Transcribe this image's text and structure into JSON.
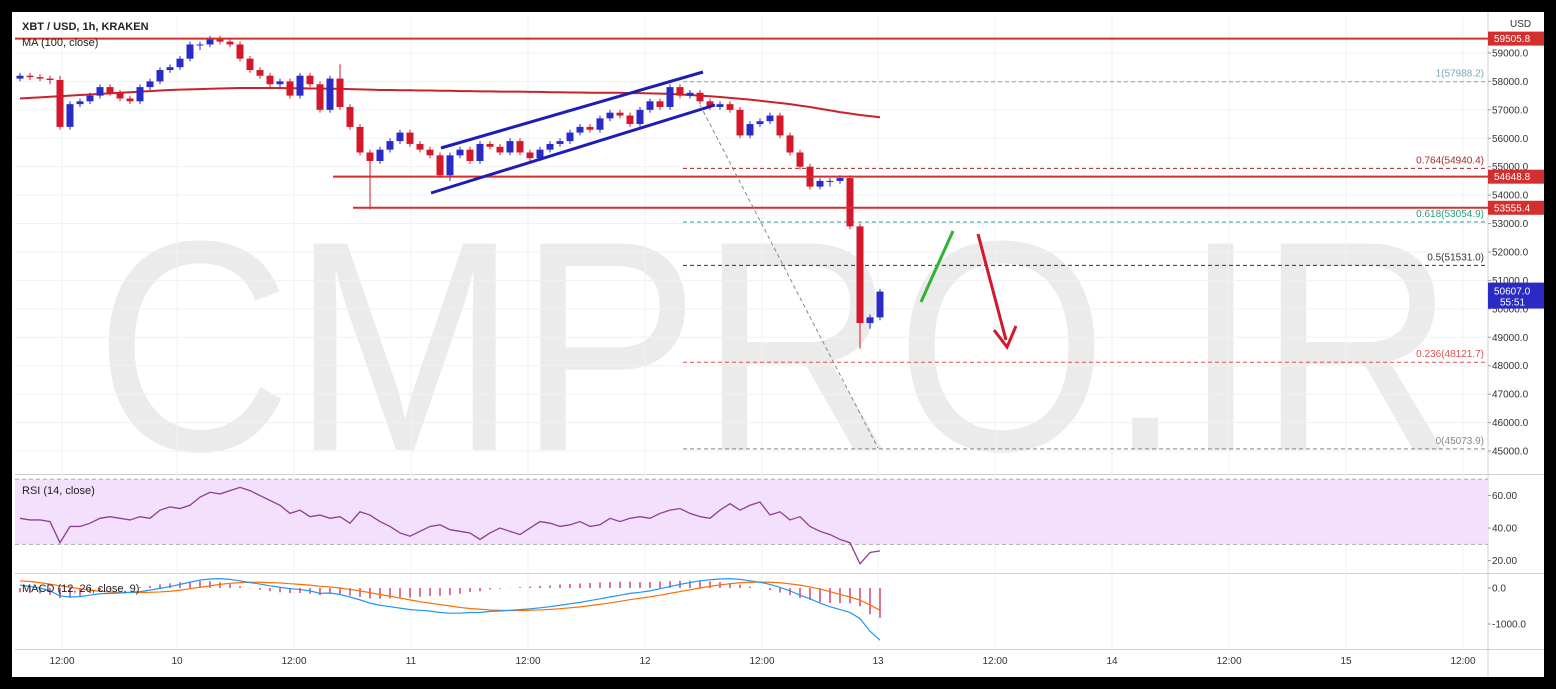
{
  "watermark": "CMPRO.IR",
  "chart_data": [
    {
      "type": "candlestick",
      "title": "XBT / USD, 1h, KRAKEN",
      "currency": "USD",
      "xlim": [
        -0.5,
        146.8
      ],
      "xticks": [
        {
          "value": 4.2,
          "label": "12:00"
        },
        {
          "value": 15.7,
          "label": "10"
        },
        {
          "value": 27.4,
          "label": "12:00"
        },
        {
          "value": 39.1,
          "label": "11"
        },
        {
          "value": 50.8,
          "label": "12:00"
        },
        {
          "value": 62.5,
          "label": "12"
        },
        {
          "value": 74.2,
          "label": "12:00"
        },
        {
          "value": 85.8,
          "label": "13"
        },
        {
          "value": 97.5,
          "label": "12:00"
        },
        {
          "value": 109.2,
          "label": "14"
        },
        {
          "value": 120.9,
          "label": "12:00"
        },
        {
          "value": 132.6,
          "label": "15"
        },
        {
          "value": 144.3,
          "label": "12:00"
        }
      ],
      "ylim": [
        44226,
        60336
      ],
      "yticks": [
        {
          "value": 45000,
          "label": "45000.0"
        },
        {
          "value": 46000,
          "label": "46000.0"
        },
        {
          "value": 47000,
          "label": "47000.0"
        },
        {
          "value": 48000,
          "label": "48000.0"
        },
        {
          "value": 49000,
          "label": "49000.0"
        },
        {
          "value": 50000,
          "label": "50000.0"
        },
        {
          "value": 51000,
          "label": "51000.0"
        },
        {
          "value": 52000,
          "label": "52000.0"
        },
        {
          "value": 53000,
          "label": "53000.0"
        },
        {
          "value": 54000,
          "label": "54000.0"
        },
        {
          "value": 55000,
          "label": "55000.0"
        },
        {
          "value": 56000,
          "label": "56000.0"
        },
        {
          "value": 57000,
          "label": "57000.0"
        },
        {
          "value": 58000,
          "label": "58000.0"
        },
        {
          "value": 59000,
          "label": "59000.0"
        }
      ],
      "grid": true,
      "ohlc": {
        "up_color": "#2a2ac4",
        "down_color": "#d3182b",
        "open": [
          58100,
          58200,
          58150,
          58100,
          58050,
          56400,
          57200,
          57300,
          57500,
          57800,
          57600,
          57400,
          57300,
          57800,
          58000,
          58400,
          58500,
          58800,
          59300,
          59300,
          59500,
          59400,
          59300,
          58800,
          58400,
          58200,
          57900,
          58000,
          57500,
          58200,
          57900,
          57000,
          58100,
          57100,
          56400,
          55500,
          55200,
          55600,
          55900,
          56200,
          55800,
          55600,
          55400,
          54700,
          55400,
          55600,
          55200,
          55800,
          55700,
          55500,
          55900,
          55500,
          55300,
          55600,
          55800,
          55900,
          56200,
          56400,
          56300,
          56700,
          56900,
          56800,
          56500,
          57000,
          57300,
          57100,
          57800,
          57500,
          57600,
          57300,
          57100,
          57200,
          57000,
          56100,
          56500,
          56600,
          56800,
          56100,
          55500,
          55000,
          54300,
          54500,
          54500,
          54600,
          52900,
          49500,
          49700
        ],
        "high": [
          58300,
          58300,
          58250,
          58200,
          58200,
          57300,
          57400,
          57600,
          57900,
          57900,
          57700,
          57500,
          57900,
          58100,
          58500,
          58600,
          58900,
          59400,
          59400,
          59600,
          59600,
          59500,
          59400,
          58900,
          58500,
          58300,
          58100,
          58100,
          58300,
          58300,
          58000,
          58200,
          58600,
          57200,
          56500,
          55600,
          55700,
          56000,
          56300,
          56300,
          55900,
          55700,
          55500,
          55500,
          55700,
          55700,
          55900,
          55900,
          55800,
          56000,
          56000,
          55600,
          55700,
          55900,
          56000,
          56300,
          56500,
          56500,
          56800,
          57000,
          57000,
          56900,
          57100,
          57400,
          57400,
          57900,
          57900,
          57700,
          57700,
          57400,
          57300,
          57300,
          57100,
          56600,
          56700,
          56900,
          56900,
          56200,
          55600,
          55100,
          54600,
          54600,
          54700,
          54700,
          53000,
          49800,
          50700
        ],
        "low": [
          58000,
          58050,
          58000,
          57900,
          56300,
          56300,
          57100,
          57200,
          57400,
          57500,
          57300,
          57200,
          57200,
          57700,
          57900,
          58300,
          58400,
          58700,
          59100,
          59200,
          59300,
          59200,
          58700,
          58300,
          58100,
          57800,
          57800,
          57400,
          57400,
          57800,
          56900,
          56900,
          57000,
          56300,
          55400,
          53500,
          55100,
          55500,
          55800,
          55700,
          55500,
          55300,
          54600,
          54500,
          55300,
          55100,
          55100,
          55600,
          55400,
          55400,
          55400,
          55200,
          55200,
          55500,
          55700,
          55800,
          56100,
          56200,
          56200,
          56600,
          56700,
          56400,
          56400,
          56900,
          57000,
          57000,
          57400,
          57400,
          57200,
          57000,
          57000,
          56900,
          56000,
          56000,
          56400,
          56500,
          56000,
          55400,
          54900,
          54200,
          54200,
          54300,
          54400,
          52800,
          48600,
          49300,
          49600
        ],
        "close": [
          58200,
          58150,
          58100,
          58050,
          56400,
          57200,
          57300,
          57500,
          57800,
          57600,
          57400,
          57300,
          57800,
          58000,
          58400,
          58500,
          58800,
          59300,
          59300,
          59500,
          59400,
          59300,
          58800,
          58400,
          58200,
          57900,
          58000,
          57500,
          58200,
          57900,
          57000,
          58100,
          57100,
          56400,
          55500,
          55200,
          55600,
          55900,
          56200,
          55800,
          55600,
          55400,
          54700,
          55400,
          55600,
          55200,
          55800,
          55700,
          55500,
          55900,
          55500,
          55300,
          55600,
          55800,
          55900,
          56200,
          56400,
          56300,
          56700,
          56900,
          56800,
          56500,
          57000,
          57300,
          57100,
          57800,
          57500,
          57600,
          57300,
          57100,
          57200,
          57000,
          56100,
          56500,
          56600,
          56800,
          56100,
          55500,
          55000,
          54300,
          54500,
          54500,
          54600,
          52900,
          49500,
          49700,
          50607
        ]
      },
      "series": [
        {
          "name": "MA (100, close)",
          "color": "#c8232c",
          "values": [
            57400,
            57420,
            57440,
            57460,
            57480,
            57500,
            57520,
            57540,
            57560,
            57580,
            57600,
            57620,
            57640,
            57660,
            57680,
            57700,
            57710,
            57720,
            57730,
            57740,
            57750,
            57760,
            57770,
            57770,
            57770,
            57770,
            57770,
            57760,
            57760,
            57750,
            57750,
            57740,
            57740,
            57730,
            57720,
            57710,
            57700,
            57700,
            57690,
            57690,
            57680,
            57680,
            57670,
            57670,
            57660,
            57660,
            57650,
            57650,
            57640,
            57640,
            57640,
            57630,
            57630,
            57620,
            57620,
            57610,
            57610,
            57600,
            57600,
            57600,
            57600,
            57590,
            57590,
            57580,
            57570,
            57560,
            57540,
            57520,
            57500,
            57480,
            57450,
            57420,
            57390,
            57360,
            57320,
            57280,
            57240,
            57200,
            57150,
            57100,
            57040,
            56980,
            56920,
            56870,
            56820,
            56780,
            56740
          ]
        }
      ],
      "levels": [
        {
          "value": 59505.8,
          "label": "59505.8",
          "color": "#d32f2f"
        },
        {
          "value": 54648.8,
          "label": "54648.8",
          "color": "#d32f2f",
          "from": 31.3
        },
        {
          "value": 53555.4,
          "label": "53555.4",
          "color": "#d32f2f",
          "from": 33.3
        }
      ],
      "fib_levels": [
        {
          "value": 57988.2,
          "label": "1(57988.2)",
          "color": "#7fa7b8"
        },
        {
          "value": 54940.4,
          "label": "0.764(54940.4)",
          "color": "#a52a2a"
        },
        {
          "value": 53054.9,
          "label": "0.618(53054.9)",
          "color": "#26a07a"
        },
        {
          "value": 51531.0,
          "label": "0.5(51531.0)",
          "color": "#333333"
        },
        {
          "value": 48121.7,
          "label": "0.236(48121.7)",
          "color": "#d9534f"
        },
        {
          "value": 45073.9,
          "label": "0(45073.9)",
          "color": "#888888"
        }
      ],
      "fib_from": 66.3,
      "last_price": {
        "value": 50607,
        "label": "50607.0",
        "countdown": "55:51",
        "color": "#2a2ac4"
      }
    },
    {
      "type": "line",
      "title": "RSI (14, close)",
      "color": "#8e3e8e",
      "ylim": [
        13,
        72
      ],
      "yticks": [
        {
          "value": 20,
          "label": "20.00"
        },
        {
          "value": 40,
          "label": "40.00"
        },
        {
          "value": 60,
          "label": "60.00"
        }
      ],
      "band": [
        30,
        70
      ],
      "band_color": "#f3e0fc",
      "values": [
        46,
        45,
        45,
        44,
        31,
        41,
        41,
        43,
        46,
        47,
        46,
        45,
        47,
        46,
        51,
        53,
        52,
        54,
        59,
        62,
        61,
        63,
        65,
        63,
        60,
        57,
        54,
        49,
        51,
        47,
        48,
        46,
        47,
        43,
        50,
        48,
        44,
        41,
        37,
        35,
        38,
        41,
        42,
        39,
        38,
        37,
        33,
        37,
        40,
        38,
        36,
        40,
        44,
        43,
        41,
        42,
        44,
        41,
        42,
        46,
        44,
        46,
        47,
        46,
        49,
        51,
        52,
        49,
        47,
        46,
        51,
        55,
        51,
        54,
        56,
        48,
        50,
        45,
        47,
        41,
        38,
        36,
        33,
        31,
        18,
        25,
        26
      ]
    },
    {
      "type": "macd",
      "title": "MACD (12, 26, close, 9)",
      "ylim": [
        -1667,
        361
      ],
      "yticks": [
        {
          "value": 0,
          "label": "0.0"
        },
        {
          "value": -1000,
          "label": "-1000.0"
        }
      ],
      "macd": {
        "color": "#2196f3",
        "values": [
          80,
          40,
          0,
          -80,
          -220,
          -250,
          -240,
          -200,
          -160,
          -150,
          -140,
          -120,
          -100,
          -60,
          -10,
          40,
          100,
          160,
          220,
          250,
          260,
          240,
          200,
          150,
          110,
          60,
          20,
          -20,
          -40,
          -80,
          -150,
          -140,
          -180,
          -250,
          -330,
          -420,
          -480,
          -520,
          -560,
          -600,
          -620,
          -640,
          -680,
          -700,
          -700,
          -680,
          -680,
          -650,
          -640,
          -620,
          -600,
          -580,
          -550,
          -520,
          -480,
          -440,
          -400,
          -350,
          -300,
          -250,
          -200,
          -150,
          -120,
          -80,
          -20,
          40,
          100,
          150,
          200,
          230,
          250,
          260,
          240,
          200,
          160,
          100,
          20,
          -80,
          -200,
          -300,
          -420,
          -520,
          -600,
          -680,
          -850,
          -1200,
          -1450
        ]
      },
      "signal": {
        "color": "#ff6d00",
        "values": [
          200,
          180,
          150,
          110,
          60,
          20,
          -20,
          -60,
          -90,
          -110,
          -120,
          -125,
          -125,
          -120,
          -110,
          -90,
          -60,
          -20,
          20,
          60,
          100,
          130,
          150,
          160,
          160,
          150,
          140,
          120,
          100,
          80,
          50,
          30,
          0,
          -40,
          -80,
          -130,
          -180,
          -230,
          -280,
          -330,
          -380,
          -420,
          -460,
          -500,
          -540,
          -570,
          -590,
          -610,
          -620,
          -625,
          -625,
          -620,
          -610,
          -595,
          -575,
          -550,
          -525,
          -490,
          -455,
          -415,
          -370,
          -325,
          -285,
          -245,
          -200,
          -150,
          -100,
          -50,
          0,
          45,
          85,
          120,
          145,
          160,
          165,
          160,
          145,
          115,
          80,
          30,
          -30,
          -100,
          -180,
          -250,
          -340,
          -470,
          -620
        ]
      },
      "histogram": {
        "color": "#c2185b",
        "values": [
          -120,
          -140,
          -150,
          -190,
          -280,
          -270,
          -220,
          -140,
          -70,
          -40,
          -20,
          5,
          25,
          60,
          100,
          130,
          160,
          180,
          200,
          190,
          160,
          110,
          50,
          -10,
          -50,
          -90,
          -120,
          -140,
          -140,
          -160,
          -200,
          -170,
          -180,
          -210,
          -250,
          -290,
          -300,
          -290,
          -280,
          -270,
          -240,
          -220,
          -220,
          -200,
          -160,
          -110,
          -90,
          -40,
          -20,
          5,
          25,
          40,
          60,
          75,
          95,
          110,
          125,
          140,
          155,
          165,
          170,
          175,
          165,
          165,
          180,
          190,
          200,
          200,
          200,
          185,
          165,
          140,
          95,
          40,
          -5,
          -60,
          -125,
          -195,
          -280,
          -330,
          -390,
          -420,
          -420,
          -430,
          -510,
          -730,
          -830
        ]
      }
    }
  ]
}
